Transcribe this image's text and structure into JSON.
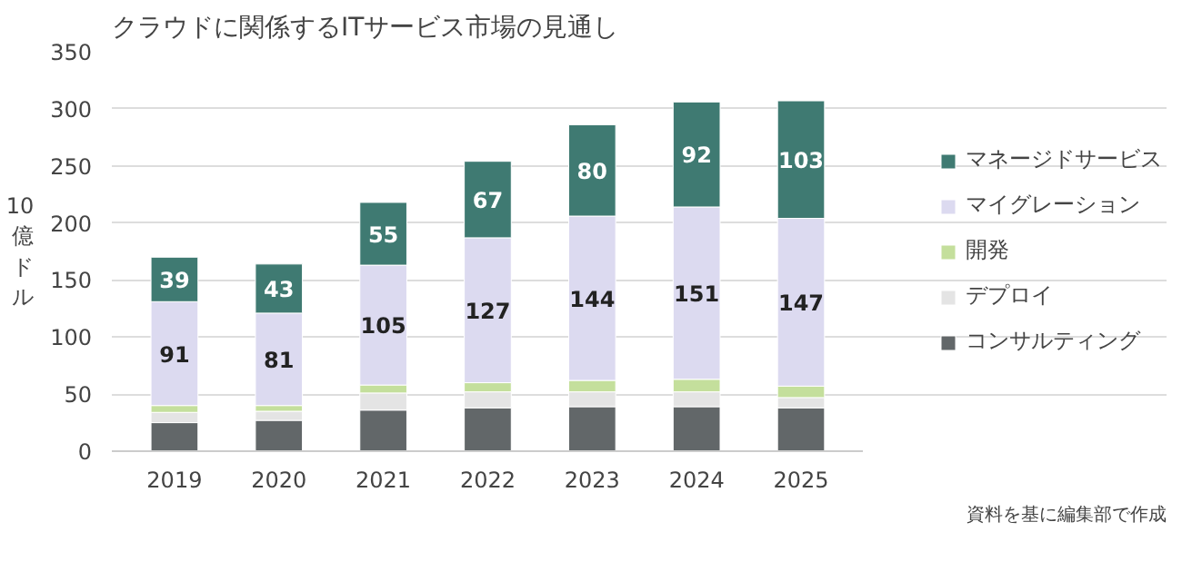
{
  "chart_data": {
    "type": "bar",
    "title": "クラウドに関係するITサービス市場の見通し",
    "ylabel": "10億ドル",
    "categories": [
      "2019",
      "2020",
      "2021",
      "2022",
      "2023",
      "2024",
      "2025"
    ],
    "stacked": true,
    "series": [
      {
        "name": "コンサルティング",
        "color": "#626769",
        "values": [
          25,
          27,
          36,
          38,
          39,
          39,
          38
        ]
      },
      {
        "name": "デプロイ",
        "color": "#e4e4e4",
        "values": [
          9,
          8,
          15,
          14,
          13,
          13,
          9
        ]
      },
      {
        "name": "開発",
        "color": "#c4df9c",
        "values": [
          6,
          5,
          7,
          8,
          10,
          11,
          10
        ]
      },
      {
        "name": "マイグレーション",
        "color": "#dcdaf0",
        "values": [
          91,
          81,
          105,
          127,
          144,
          151,
          147
        ],
        "value_labels": [
          "91",
          "81",
          "105",
          "127",
          "144",
          "151",
          "147"
        ]
      },
      {
        "name": "マネージドサービス",
        "color": "#3f7a72",
        "values": [
          39,
          43,
          55,
          67,
          80,
          92,
          103
        ],
        "value_labels": [
          "39",
          "43",
          "55",
          "67",
          "80",
          "92",
          "103"
        ]
      }
    ],
    "ylim": [
      0,
      350
    ],
    "yticks": [
      0,
      50,
      100,
      150,
      200,
      250,
      300,
      350
    ],
    "grid": "y",
    "legend": "right",
    "annotations": [
      "資料を基に編集部で作成"
    ]
  }
}
